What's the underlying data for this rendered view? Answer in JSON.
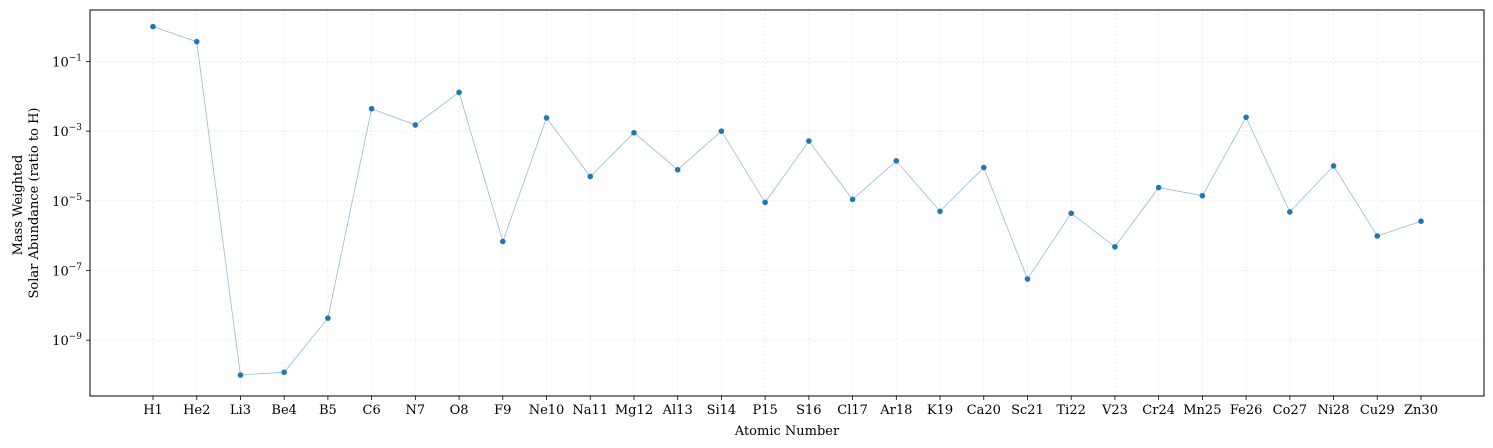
{
  "chart_data": {
    "type": "line",
    "xlabel": "Atomic Number",
    "ylabel_lines": [
      "Mass Weighted",
      "Solar Abundance (ratio to H)"
    ],
    "y_scale": "log",
    "ylim": [
      2.5e-11,
      3
    ],
    "y_tick_values": [
      1e-09,
      1e-07,
      1e-05,
      0.001,
      0.1
    ],
    "y_tick_labels": [
      {
        "base": "10",
        "exp": "−9"
      },
      {
        "base": "10",
        "exp": "−7"
      },
      {
        "base": "10",
        "exp": "−5"
      },
      {
        "base": "10",
        "exp": "−3"
      },
      {
        "base": "10",
        "exp": "−1"
      }
    ],
    "grid": true,
    "marker": "circle",
    "color": "#1f77b4",
    "categories": [
      "H1",
      "He2",
      "Li3",
      "Be4",
      "B5",
      "C6",
      "N7",
      "O8",
      "F9",
      "Ne10",
      "Na11",
      "Mg12",
      "Al13",
      "Si14",
      "P15",
      "S16",
      "Cl17",
      "Ar18",
      "K19",
      "Ca20",
      "Sc21",
      "Ti22",
      "V23",
      "Cr24",
      "Mn25",
      "Fe26",
      "Co27",
      "Ni28",
      "Cu29",
      "Zn30"
    ],
    "values": [
      1.0,
      0.37,
      1e-10,
      1.2e-10,
      4.3e-09,
      0.0044,
      0.0015,
      0.013,
      6.8e-07,
      0.0024,
      5e-05,
      0.0009,
      7.8e-05,
      0.001,
      9e-06,
      0.00052,
      1.1e-05,
      0.00014,
      5e-06,
      9e-05,
      5.7e-08,
      4.4e-06,
      4.8e-07,
      2.4e-05,
      1.4e-05,
      0.0025,
      4.8e-06,
      0.0001,
      9.8e-07,
      2.6e-06
    ]
  }
}
